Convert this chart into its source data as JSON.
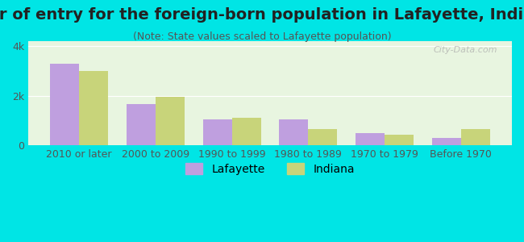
{
  "title": "Year of entry for the foreign-born population in Lafayette, Indiana",
  "subtitle": "(Note: State values scaled to Lafayette population)",
  "categories": [
    "2010 or later",
    "2000 to 2009",
    "1990 to 1999",
    "1980 to 1989",
    "1970 to 1979",
    "Before 1970"
  ],
  "lafayette_values": [
    3300,
    1650,
    1050,
    1050,
    500,
    300
  ],
  "indiana_values": [
    3000,
    1950,
    1100,
    650,
    420,
    650
  ],
  "lafayette_color": "#bf9fdf",
  "indiana_color": "#c8d47a",
  "background_outer": "#00e5e5",
  "background_inner_top": "#e8f5e0",
  "background_inner_bottom": "#f0f8e8",
  "ylim": [
    0,
    4200
  ],
  "yticks": [
    0,
    2000,
    4000
  ],
  "ytick_labels": [
    "0",
    "2k",
    "4k"
  ],
  "bar_width": 0.38,
  "title_fontsize": 14,
  "subtitle_fontsize": 9,
  "axis_fontsize": 9,
  "legend_fontsize": 10,
  "watermark": "City-Data.com"
}
